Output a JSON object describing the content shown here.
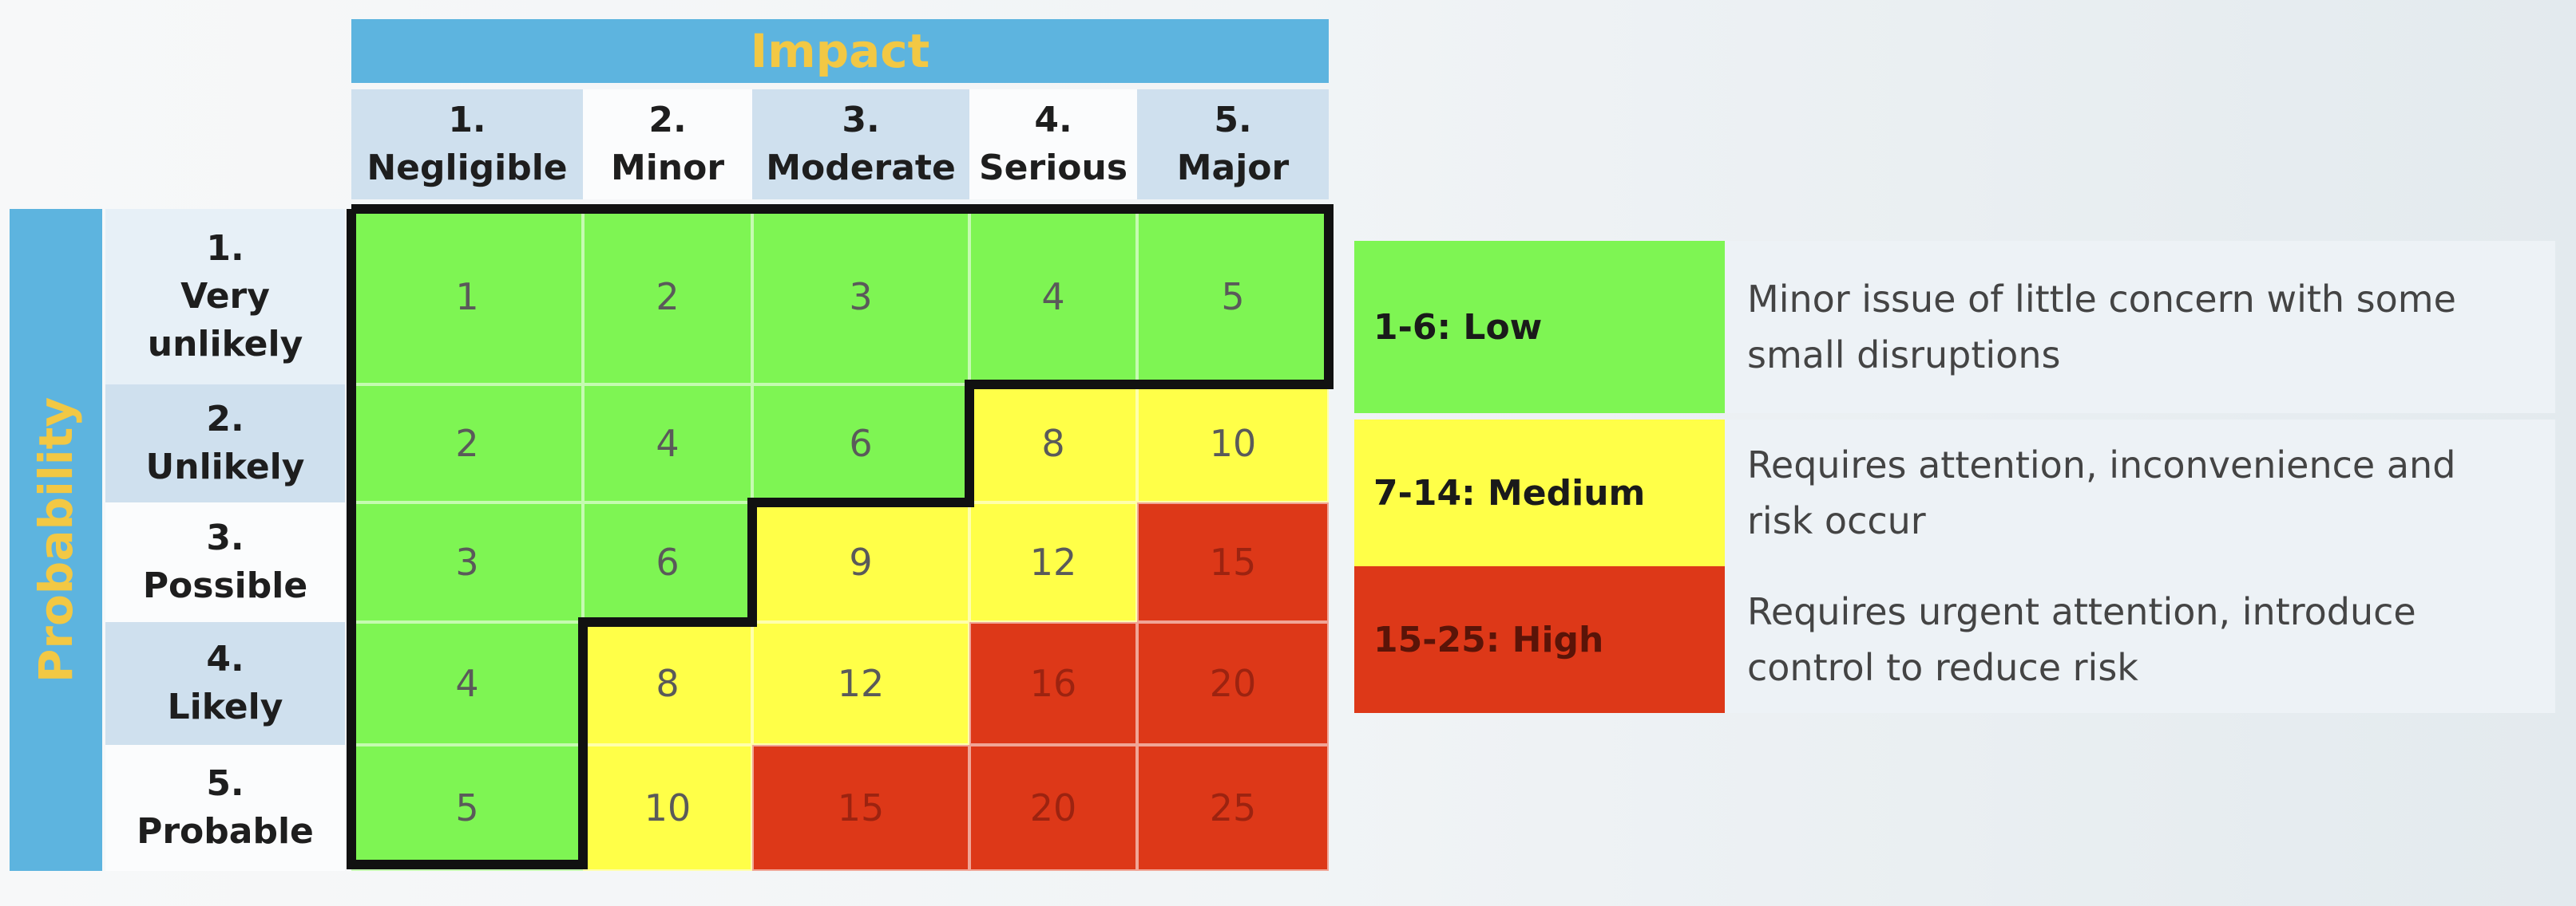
{
  "matrix": {
    "impact_title": "Impact",
    "probability_title": "Probability",
    "impact_levels": [
      {
        "num": "1.",
        "label": "Negligible"
      },
      {
        "num": "2.",
        "label": "Minor"
      },
      {
        "num": "3.",
        "label": "Moderate"
      },
      {
        "num": "4.",
        "label": "Serious"
      },
      {
        "num": "5.",
        "label": "Major"
      }
    ],
    "probability_levels": [
      {
        "num": "1.",
        "label": "Very unlikely"
      },
      {
        "num": "2.",
        "label": "Unlikely"
      },
      {
        "num": "3.",
        "label": "Possible"
      },
      {
        "num": "4.",
        "label": "Likely"
      },
      {
        "num": "5.",
        "label": "Probable"
      }
    ],
    "scores": [
      [
        1,
        2,
        3,
        4,
        5
      ],
      [
        2,
        4,
        6,
        8,
        10
      ],
      [
        3,
        6,
        9,
        12,
        15
      ],
      [
        4,
        8,
        12,
        16,
        20
      ],
      [
        5,
        10,
        15,
        20,
        25
      ]
    ]
  },
  "legend": [
    {
      "label": "1-6: Low",
      "description": "Minor issue of little concern with some small disruptions",
      "color": "#7ef553"
    },
    {
      "label": "7-14: Medium",
      "description": "Requires attention, inconvenience and risk occur",
      "color": "#ffff48"
    },
    {
      "label": "15-25: High",
      "description": "Requires urgent attention, introduce control to reduce risk",
      "color": "#dd3818"
    }
  ],
  "colors": {
    "low": "#7ef553",
    "medium": "#ffff48",
    "high": "#dd3818",
    "banner": "#5db4df",
    "banner_text": "#f2c844"
  }
}
